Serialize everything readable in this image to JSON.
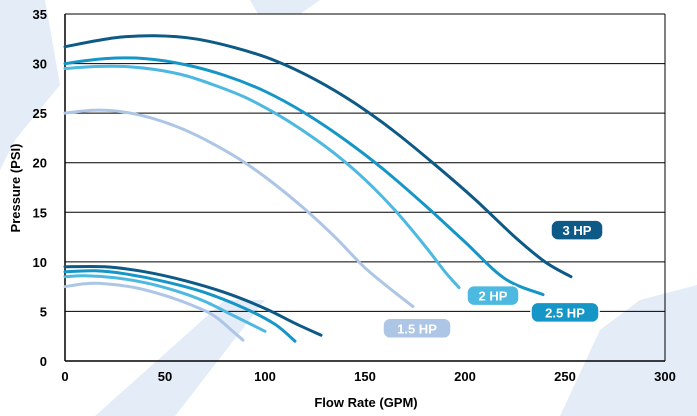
{
  "chart_data": {
    "type": "line",
    "xlabel": "Flow Rate (GPM)",
    "ylabel": "Pressure (PSI)",
    "xlim": [
      0,
      300
    ],
    "ylim": [
      0,
      35
    ],
    "x_ticks": [
      "0",
      "50",
      "100",
      "150",
      "200",
      "250",
      "300"
    ],
    "y_ticks": [
      "0",
      "5",
      "10",
      "15",
      "20",
      "25",
      "30",
      "35"
    ],
    "grid": "horizontal",
    "series": [
      {
        "name": "1.5 HP",
        "color": "#adc6e6",
        "points": [
          [
            0,
            25.0
          ],
          [
            15,
            25.3
          ],
          [
            30,
            25.1
          ],
          [
            45,
            24.4
          ],
          [
            60,
            23.3
          ],
          [
            75,
            21.8
          ],
          [
            90,
            20.0
          ],
          [
            105,
            17.8
          ],
          [
            120,
            15.3
          ],
          [
            135,
            12.5
          ],
          [
            150,
            9.4
          ],
          [
            165,
            6.9
          ],
          [
            174,
            5.5
          ]
        ],
        "low_points": [
          [
            0,
            7.5
          ],
          [
            10,
            7.8
          ],
          [
            20,
            7.8
          ],
          [
            35,
            7.4
          ],
          [
            50,
            6.6
          ],
          [
            65,
            5.5
          ],
          [
            75,
            4.5
          ],
          [
            85,
            2.8
          ],
          [
            89,
            2.1
          ]
        ]
      },
      {
        "name": "2 HP",
        "color": "#4db8e0",
        "points": [
          [
            0,
            29.5
          ],
          [
            15,
            29.7
          ],
          [
            30,
            29.7
          ],
          [
            45,
            29.4
          ],
          [
            60,
            28.8
          ],
          [
            75,
            27.8
          ],
          [
            90,
            26.6
          ],
          [
            105,
            25.0
          ],
          [
            120,
            23.1
          ],
          [
            135,
            20.9
          ],
          [
            150,
            18.3
          ],
          [
            165,
            15.2
          ],
          [
            180,
            11.6
          ],
          [
            190,
            9.0
          ],
          [
            197,
            7.4
          ]
        ],
        "low_points": [
          [
            0,
            8.5
          ],
          [
            10,
            8.6
          ],
          [
            25,
            8.4
          ],
          [
            40,
            7.9
          ],
          [
            55,
            7.1
          ],
          [
            70,
            6.0
          ],
          [
            85,
            4.5
          ],
          [
            95,
            3.5
          ],
          [
            100,
            3.0
          ]
        ]
      },
      {
        "name": "2.5 HP",
        "color": "#1596c6",
        "points": [
          [
            0,
            30.0
          ],
          [
            20,
            30.5
          ],
          [
            40,
            30.5
          ],
          [
            60,
            29.9
          ],
          [
            80,
            28.8
          ],
          [
            100,
            27.2
          ],
          [
            120,
            25.0
          ],
          [
            140,
            22.3
          ],
          [
            160,
            19.2
          ],
          [
            180,
            15.7
          ],
          [
            200,
            12.0
          ],
          [
            220,
            8.3
          ],
          [
            239,
            6.7
          ]
        ],
        "low_points": [
          [
            0,
            9.0
          ],
          [
            15,
            9.1
          ],
          [
            30,
            8.8
          ],
          [
            50,
            8.0
          ],
          [
            70,
            6.9
          ],
          [
            90,
            5.3
          ],
          [
            105,
            3.7
          ],
          [
            115,
            2.0
          ]
        ]
      },
      {
        "name": "3 HP",
        "color": "#0e5a86",
        "points": [
          [
            0,
            31.7
          ],
          [
            25,
            32.6
          ],
          [
            45,
            32.8
          ],
          [
            65,
            32.5
          ],
          [
            85,
            31.6
          ],
          [
            105,
            30.3
          ],
          [
            125,
            28.4
          ],
          [
            145,
            26.0
          ],
          [
            165,
            23.1
          ],
          [
            185,
            19.8
          ],
          [
            205,
            16.3
          ],
          [
            225,
            12.5
          ],
          [
            240,
            10.0
          ],
          [
            253,
            8.5
          ]
        ],
        "low_points": [
          [
            0,
            9.5
          ],
          [
            20,
            9.5
          ],
          [
            40,
            9.0
          ],
          [
            60,
            8.1
          ],
          [
            80,
            6.9
          ],
          [
            100,
            5.3
          ],
          [
            115,
            3.8
          ],
          [
            128,
            2.6
          ]
        ]
      }
    ],
    "annotations": [
      {
        "text": "1.5 HP",
        "series": "1.5 HP",
        "x": 176,
        "y": 3.3
      },
      {
        "text": "2 HP",
        "series": "2 HP",
        "x": 214,
        "y": 6.6
      },
      {
        "text": "2.5 HP",
        "series": "2.5 HP",
        "x": 250,
        "y": 4.9
      },
      {
        "text": "3 HP",
        "series": "3 HP",
        "x": 256,
        "y": 13.2
      }
    ],
    "background": {
      "watermark_color": "#e4ecf7"
    }
  }
}
